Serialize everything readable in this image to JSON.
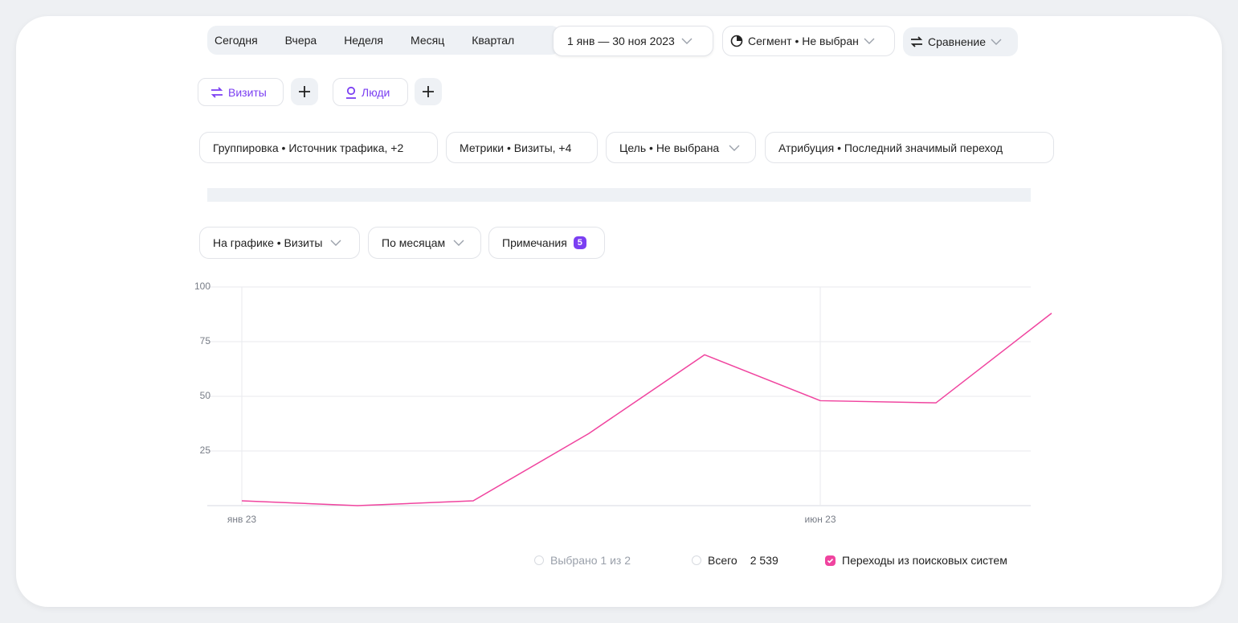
{
  "toolbar": {
    "periods": [
      "Сегодня",
      "Вчера",
      "Неделя",
      "Месяц",
      "Квартал"
    ],
    "date_range": "1 янв — 30 ноя 2023",
    "segment": "Сегмент • Не выбран",
    "comparison": "Сравнение"
  },
  "segments": [
    "Визиты",
    "Люди"
  ],
  "settings": [
    "Группировка • Источник трафика, +2",
    "Метрики • Визиты, +4",
    "Цель • Не выбрана",
    "Атрибуция • Последний значимый переход"
  ],
  "chart_controls": {
    "metric": "На графике • Визиты",
    "period": "По месяцам",
    "notes": "Примечания",
    "notes_count": 5
  },
  "legend": {
    "selected": "Выбрано 1 из 2",
    "total_label": "Всего",
    "total": "2 539"
  },
  "chart_data": {
    "type": "line",
    "categories": [
      "янв 23",
      null,
      null,
      null,
      null,
      "июн 23",
      null,
      null
    ],
    "series": [
      {
        "name": "Переходы из поисковых систем",
        "color": "#f0449f",
        "values": [
          2.2,
          0,
          2.2,
          33,
          69,
          48,
          47,
          88
        ]
      }
    ],
    "ylim": [
      0,
      100
    ],
    "yticks": [
      25,
      50,
      75,
      100
    ],
    "grid": true
  }
}
